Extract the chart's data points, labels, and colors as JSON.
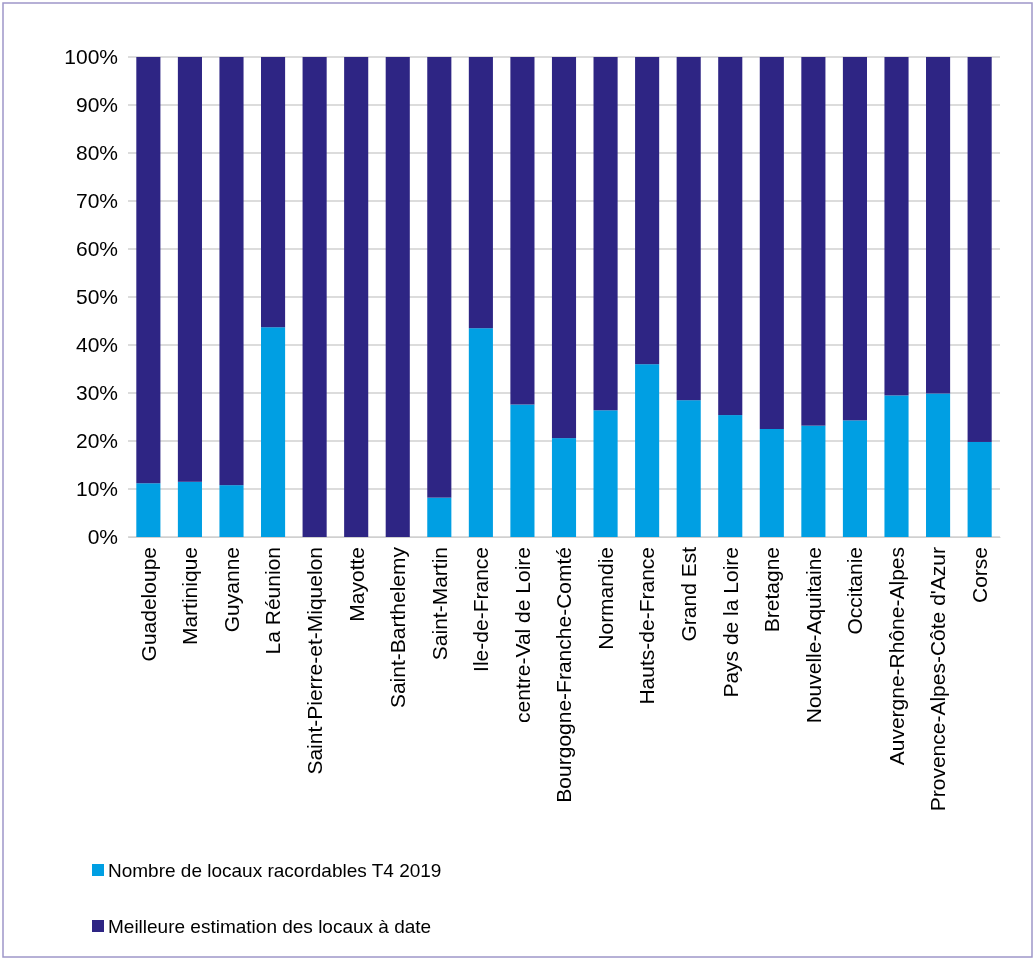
{
  "chart_data": {
    "type": "bar",
    "stacked": true,
    "categories": [
      "Guadeloupe",
      "Martinique",
      "Guyanne",
      "La Réunion",
      "Saint-Pierre-et-Miquelon",
      "Mayotte",
      "Saint-Barthelemy",
      "Saint-Martin",
      "Ile-de-France",
      "centre-Val de Loire",
      "Bourgogne-Franche-Comté",
      "Normandie",
      "Hauts-de-France",
      "Grand Est",
      "Pays de la Loire",
      "Bretagne",
      "Nouvelle-Aquitaine",
      "Occitanie",
      "Auvergne-Rhône-Alpes",
      "Provence-Alpes-Côte d'Azur",
      "Corse"
    ],
    "series": [
      {
        "name": "Nombre de locaux racordables T4 2019",
        "color": "#009fe3",
        "values": [
          11.2,
          11.5,
          10.8,
          43.7,
          0,
          0,
          0,
          8.2,
          43.5,
          27.6,
          20.6,
          26.4,
          36,
          28.5,
          25.4,
          22.5,
          23.2,
          24.3,
          29.5,
          29.9,
          19.8
        ]
      },
      {
        "name": "Meilleure estimation des locaux à date",
        "color": "#2e2584",
        "values": [
          88.8,
          88.5,
          89.2,
          56.3,
          100,
          100,
          100,
          91.8,
          56.5,
          72.4,
          79.4,
          73.6,
          64,
          71.5,
          74.6,
          77.5,
          76.8,
          75.7,
          70.5,
          70.1,
          80.2
        ]
      }
    ],
    "ylim": [
      0,
      100
    ],
    "yticks": [
      {
        "value": 0,
        "label": "0%"
      },
      {
        "value": 10,
        "label": "10%"
      },
      {
        "value": 20,
        "label": "20%"
      },
      {
        "value": 30,
        "label": "30%"
      },
      {
        "value": 40,
        "label": "40%"
      },
      {
        "value": 50,
        "label": "50%"
      },
      {
        "value": 60,
        "label": "60%"
      },
      {
        "value": 70,
        "label": "70%"
      },
      {
        "value": 80,
        "label": "80%"
      },
      {
        "value": 90,
        "label": "90%"
      },
      {
        "value": 100,
        "label": "100%"
      }
    ],
    "grid": "y",
    "legend": "bottom"
  }
}
